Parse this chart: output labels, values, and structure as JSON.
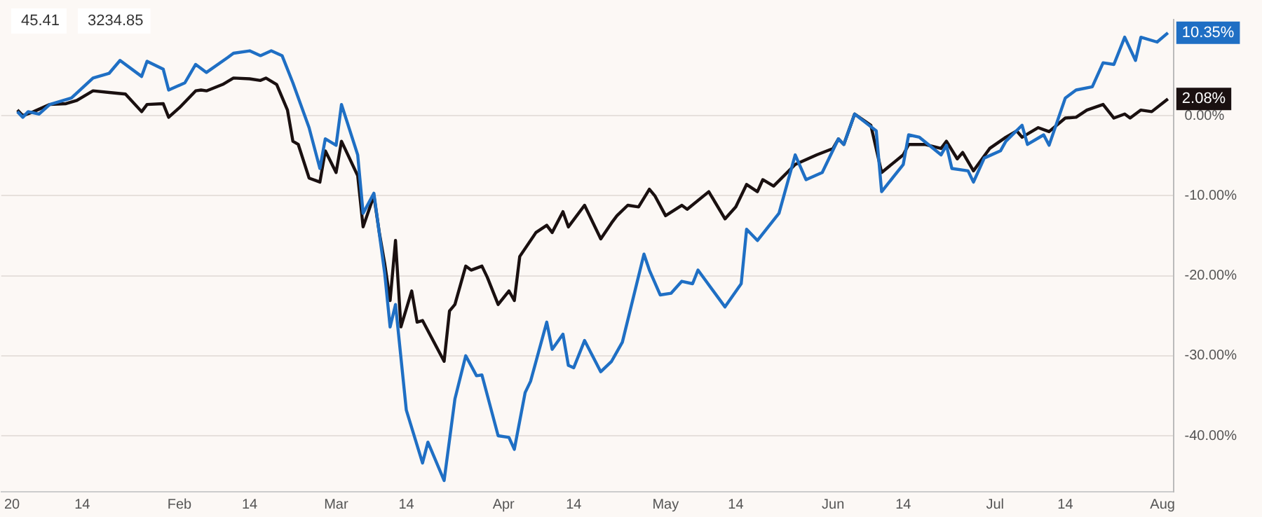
{
  "chart_data": {
    "type": "line",
    "xlim": [
      "2019-12-30",
      "2020-08-03"
    ],
    "ylim": [
      -47,
      12
    ],
    "xticks": [
      {
        "value": "2020-01-01",
        "label": "20"
      },
      {
        "value": "2020-01-14",
        "label": "14"
      },
      {
        "value": "2020-02-01",
        "label": "Feb"
      },
      {
        "value": "2020-02-14",
        "label": "14"
      },
      {
        "value": "2020-03-01",
        "label": "Mar"
      },
      {
        "value": "2020-03-14",
        "label": "14"
      },
      {
        "value": "2020-04-01",
        "label": "Apr"
      },
      {
        "value": "2020-04-14",
        "label": "14"
      },
      {
        "value": "2020-05-01",
        "label": "May"
      },
      {
        "value": "2020-05-14",
        "label": "14"
      },
      {
        "value": "2020-06-01",
        "label": "Jun"
      },
      {
        "value": "2020-06-14",
        "label": "14"
      },
      {
        "value": "2020-07-01",
        "label": "Jul"
      },
      {
        "value": "2020-07-14",
        "label": "14"
      },
      {
        "value": "2020-08-01",
        "label": "Aug"
      }
    ],
    "yticks": [
      {
        "value": 0,
        "label": "0.00%"
      },
      {
        "value": -10,
        "label": "-10.00%"
      },
      {
        "value": -20,
        "label": "-20.00%"
      },
      {
        "value": -30,
        "label": "-30.00%"
      },
      {
        "value": -40,
        "label": "-40.00%"
      }
    ],
    "grid": "y",
    "legend": false,
    "marker": "none",
    "line_style": "solid",
    "series": [
      {
        "color": "#1f6fc4",
        "x": [
          "2020-01-02",
          "2020-01-03",
          "2020-01-04",
          "2020-01-06",
          "2020-01-08",
          "2020-01-12",
          "2020-01-16",
          "2020-01-19",
          "2020-01-21",
          "2020-01-25",
          "2020-01-26",
          "2020-01-29",
          "2020-01-30",
          "2020-02-02",
          "2020-02-04",
          "2020-02-06",
          "2020-02-10",
          "2020-02-11",
          "2020-02-14",
          "2020-02-16",
          "2020-02-18",
          "2020-02-20",
          "2020-02-22",
          "2020-02-25",
          "2020-02-27",
          "2020-02-28",
          "2020-03-01",
          "2020-03-02",
          "2020-03-05",
          "2020-03-06",
          "2020-03-08",
          "2020-03-10",
          "2020-03-11",
          "2020-03-12",
          "2020-03-14",
          "2020-03-17",
          "2020-03-18",
          "2020-03-21",
          "2020-03-23",
          "2020-03-25",
          "2020-03-27",
          "2020-03-28",
          "2020-03-31",
          "2020-04-02",
          "2020-04-03",
          "2020-04-05",
          "2020-04-06",
          "2020-04-09",
          "2020-04-10",
          "2020-04-12",
          "2020-04-13",
          "2020-04-14",
          "2020-04-16",
          "2020-04-19",
          "2020-04-21",
          "2020-04-23",
          "2020-04-27",
          "2020-04-28",
          "2020-04-30",
          "2020-05-02",
          "2020-05-04",
          "2020-05-06",
          "2020-05-07",
          "2020-05-12",
          "2020-05-15",
          "2020-05-16",
          "2020-05-18",
          "2020-05-22",
          "2020-05-25",
          "2020-05-27",
          "2020-05-30",
          "2020-06-02",
          "2020-06-03",
          "2020-06-05",
          "2020-06-09",
          "2020-06-10",
          "2020-06-14",
          "2020-06-15",
          "2020-06-17",
          "2020-06-21",
          "2020-06-22",
          "2020-06-23",
          "2020-06-26",
          "2020-06-27",
          "2020-06-29",
          "2020-07-02",
          "2020-07-03",
          "2020-07-06",
          "2020-07-07",
          "2020-07-10",
          "2020-07-11",
          "2020-07-14",
          "2020-07-16",
          "2020-07-19",
          "2020-07-21",
          "2020-07-23",
          "2020-07-25",
          "2020-07-27",
          "2020-07-28",
          "2020-07-31",
          "2020-08-02"
        ],
        "values": [
          0.5,
          -0.2,
          0.5,
          0.2,
          1.4,
          2.2,
          4.7,
          5.3,
          6.9,
          4.9,
          6.8,
          5.8,
          3.2,
          4.1,
          6.4,
          5.4,
          7.3,
          7.8,
          8.1,
          7.5,
          8.1,
          7.5,
          4.1,
          -1.5,
          -6.6,
          -2.9,
          -3.7,
          1.4,
          -4.9,
          -12.2,
          -9.7,
          -19.7,
          -26.4,
          -23.6,
          -36.8,
          -43.4,
          -40.8,
          -45.6,
          -35.4,
          -30,
          -32.5,
          -32.4,
          -40,
          -40.2,
          -41.7,
          -34.6,
          -33.2,
          -25.8,
          -29.2,
          -27.3,
          -31.2,
          -31.5,
          -28.1,
          -32,
          -30.7,
          -28.3,
          -17.3,
          -19.3,
          -22.4,
          -22.2,
          -20.7,
          -21,
          -19.3,
          -23.9,
          -21,
          -14.2,
          -15.6,
          -12.2,
          -4.9,
          -8,
          -7.1,
          -2.9,
          -3.6,
          0.2,
          -1.9,
          -9.5,
          -6.1,
          -2.4,
          -2.7,
          -4.9,
          -3.7,
          -6.6,
          -6.9,
          -8.3,
          -5.3,
          -4.4,
          -3.2,
          -1.2,
          -3.6,
          -2.4,
          -3.7,
          2.2,
          3.2,
          3.6,
          6.6,
          6.4,
          9.8,
          6.9,
          9.8,
          9.2,
          10.35
        ]
      },
      {
        "color": "#1a1010",
        "x": [
          "2020-01-02",
          "2020-01-03",
          "2020-01-05",
          "2020-01-08",
          "2020-01-11",
          "2020-01-13",
          "2020-01-16",
          "2020-01-19",
          "2020-01-22",
          "2020-01-25",
          "2020-01-26",
          "2020-01-29",
          "2020-01-30",
          "2020-02-01",
          "2020-02-04",
          "2020-02-05",
          "2020-02-06",
          "2020-02-09",
          "2020-02-11",
          "2020-02-14",
          "2020-02-16",
          "2020-02-17",
          "2020-02-19",
          "2020-02-21",
          "2020-02-22",
          "2020-02-23",
          "2020-02-25",
          "2020-02-27",
          "2020-02-28",
          "2020-03-01",
          "2020-03-02",
          "2020-03-05",
          "2020-03-06",
          "2020-03-08",
          "2020-03-09",
          "2020-03-10",
          "2020-03-11",
          "2020-03-12",
          "2020-03-13",
          "2020-03-15",
          "2020-03-16",
          "2020-03-17",
          "2020-03-21",
          "2020-03-22",
          "2020-03-23",
          "2020-03-25",
          "2020-03-26",
          "2020-03-28",
          "2020-03-29",
          "2020-03-31",
          "2020-04-02",
          "2020-04-03",
          "2020-04-04",
          "2020-04-07",
          "2020-04-09",
          "2020-04-10",
          "2020-04-12",
          "2020-04-13",
          "2020-04-16",
          "2020-04-19",
          "2020-04-21",
          "2020-04-22",
          "2020-04-24",
          "2020-04-26",
          "2020-04-28",
          "2020-04-29",
          "2020-05-01",
          "2020-05-04",
          "2020-05-05",
          "2020-05-09",
          "2020-05-12",
          "2020-05-14",
          "2020-05-16",
          "2020-05-18",
          "2020-05-19",
          "2020-05-21",
          "2020-05-25",
          "2020-05-29",
          "2020-06-01",
          "2020-06-02",
          "2020-06-03",
          "2020-06-05",
          "2020-06-08",
          "2020-06-10",
          "2020-06-14",
          "2020-06-15",
          "2020-06-18",
          "2020-06-21",
          "2020-06-22",
          "2020-06-24",
          "2020-06-25",
          "2020-06-27",
          "2020-06-30",
          "2020-07-03",
          "2020-07-05",
          "2020-07-06",
          "2020-07-09",
          "2020-07-11",
          "2020-07-14",
          "2020-07-16",
          "2020-07-18",
          "2020-07-21",
          "2020-07-23",
          "2020-07-25",
          "2020-07-26",
          "2020-07-28",
          "2020-07-30",
          "2020-08-02"
        ],
        "values": [
          0.7,
          0,
          0.5,
          1.4,
          1.5,
          1.9,
          3.1,
          2.9,
          2.7,
          0.5,
          1.4,
          1.5,
          -0.2,
          1,
          3.1,
          3.2,
          3.1,
          3.9,
          4.7,
          4.6,
          4.4,
          4.7,
          3.9,
          0.7,
          -3.2,
          -3.6,
          -7.8,
          -8.3,
          -4.4,
          -7.1,
          -3.2,
          -7.5,
          -13.9,
          -10,
          -14.6,
          -18.5,
          -23.1,
          -15.6,
          -26.4,
          -21.9,
          -25.8,
          -25.6,
          -30.7,
          -24.4,
          -23.6,
          -18.8,
          -19.3,
          -18.8,
          -20.2,
          -23.6,
          -21.9,
          -23.1,
          -17.6,
          -14.6,
          -13.7,
          -14.6,
          -12,
          -13.9,
          -11.2,
          -15.4,
          -13.4,
          -12.5,
          -11.2,
          -11.4,
          -9.2,
          -10,
          -12.5,
          -11.2,
          -11.7,
          -9.5,
          -12.9,
          -11.4,
          -8.6,
          -9.5,
          -8,
          -8.8,
          -6.1,
          -4.9,
          -4.1,
          -2.9,
          -3.6,
          0.2,
          -1.2,
          -7.1,
          -4.9,
          -3.6,
          -3.6,
          -4.1,
          -3.2,
          -5.4,
          -4.6,
          -6.9,
          -4.1,
          -2.7,
          -1.9,
          -2.7,
          -1.5,
          -2,
          -0.3,
          -0.2,
          0.7,
          1.4,
          -0.3,
          0.2,
          -0.3,
          0.7,
          0.5,
          2.08
        ]
      }
    ],
    "annotations": [
      "45.41",
      "3234.85",
      {
        "text": "10.35%",
        "x": "2020-08-02",
        "y": 10.35
      },
      {
        "text": "2.08%",
        "x": "2020-08-02",
        "y": 2.08
      }
    ]
  }
}
